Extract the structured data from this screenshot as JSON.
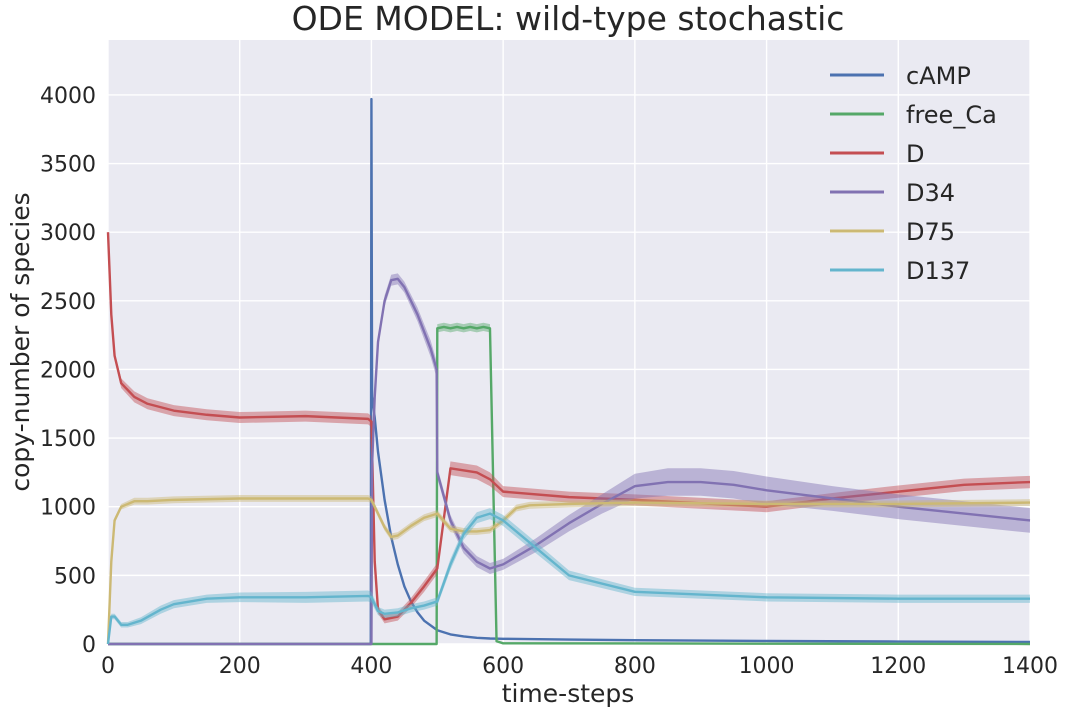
{
  "chart_data": {
    "type": "line",
    "title": "ODE MODEL: wild-type stochastic",
    "xlabel": "time-steps",
    "ylabel": "copy-number of species",
    "xlim": [
      0,
      1400
    ],
    "ylim": [
      0,
      4400
    ],
    "xticks": [
      0,
      200,
      400,
      600,
      800,
      1000,
      1200,
      1400
    ],
    "yticks": [
      0,
      500,
      1000,
      1500,
      2000,
      2500,
      3000,
      3500,
      4000
    ],
    "grid": true,
    "legend_position": "top-right",
    "series": [
      {
        "name": "cAMP",
        "color": "#4c72b0",
        "x": [
          0,
          399,
          400,
          401,
          405,
          410,
          420,
          430,
          440,
          450,
          460,
          470,
          480,
          500,
          520,
          540,
          560,
          580,
          600,
          700,
          800,
          1000,
          1200,
          1400
        ],
        "y": [
          0,
          0,
          3970,
          1800,
          1650,
          1400,
          1050,
          780,
          580,
          420,
          310,
          230,
          170,
          100,
          70,
          55,
          45,
          40,
          38,
          32,
          28,
          22,
          18,
          15
        ],
        "band": [
          0,
          0,
          0,
          0,
          0,
          0,
          0,
          0,
          0,
          0,
          0,
          0,
          0,
          0,
          0,
          0,
          0,
          0,
          0,
          0,
          0,
          0,
          0,
          0
        ]
      },
      {
        "name": "free_Ca",
        "color": "#55a868",
        "x": [
          0,
          499,
          500,
          510,
          520,
          530,
          540,
          550,
          560,
          570,
          580,
          590,
          600,
          1400
        ],
        "y": [
          0,
          0,
          2300,
          2310,
          2300,
          2310,
          2300,
          2310,
          2300,
          2310,
          2300,
          20,
          5,
          0
        ],
        "band": [
          0,
          0,
          30,
          30,
          30,
          30,
          30,
          30,
          30,
          30,
          30,
          0,
          0,
          0
        ]
      },
      {
        "name": "D",
        "color": "#c44e52",
        "x": [
          0,
          5,
          10,
          20,
          40,
          60,
          100,
          150,
          200,
          300,
          395,
          400,
          405,
          410,
          420,
          440,
          460,
          480,
          500,
          520,
          560,
          580,
          600,
          700,
          800,
          1000,
          1100,
          1200,
          1300,
          1400
        ],
        "y": [
          3000,
          2400,
          2100,
          1900,
          1800,
          1750,
          1700,
          1670,
          1650,
          1660,
          1640,
          1620,
          600,
          250,
          180,
          200,
          300,
          420,
          550,
          1280,
          1250,
          1200,
          1110,
          1070,
          1050,
          1000,
          1060,
          1110,
          1160,
          1180
        ],
        "band": [
          0,
          30,
          30,
          35,
          40,
          40,
          40,
          40,
          40,
          40,
          40,
          40,
          30,
          30,
          30,
          30,
          35,
          40,
          40,
          50,
          50,
          50,
          40,
          40,
          40,
          40,
          40,
          45,
          45,
          45
        ]
      },
      {
        "name": "D34",
        "color": "#8172b2",
        "x": [
          0,
          399,
          400,
          401,
          405,
          410,
          420,
          430,
          440,
          450,
          470,
          490,
          499,
          500,
          520,
          540,
          560,
          580,
          600,
          650,
          700,
          750,
          800,
          850,
          900,
          950,
          1000,
          1100,
          1200,
          1300,
          1400
        ],
        "y": [
          0,
          0,
          0,
          1300,
          1800,
          2200,
          2500,
          2650,
          2660,
          2600,
          2400,
          2150,
          2000,
          1250,
          900,
          700,
          600,
          550,
          580,
          720,
          880,
          1020,
          1150,
          1180,
          1180,
          1160,
          1120,
          1060,
          1000,
          950,
          900
        ],
        "band": [
          0,
          0,
          0,
          20,
          30,
          35,
          40,
          40,
          40,
          40,
          50,
          60,
          60,
          40,
          40,
          40,
          40,
          40,
          40,
          50,
          60,
          70,
          90,
          100,
          100,
          100,
          100,
          90,
          90,
          90,
          90
        ]
      },
      {
        "name": "D75",
        "color": "#ccb974",
        "x": [
          0,
          5,
          10,
          20,
          40,
          60,
          100,
          200,
          300,
          395,
          400,
          410,
          420,
          430,
          440,
          460,
          480,
          500,
          520,
          540,
          560,
          580,
          600,
          620,
          640,
          700,
          800,
          1000,
          1200,
          1400
        ],
        "y": [
          0,
          600,
          900,
          1000,
          1040,
          1040,
          1050,
          1060,
          1060,
          1060,
          1050,
          950,
          850,
          780,
          790,
          860,
          920,
          950,
          840,
          820,
          820,
          830,
          900,
          990,
          1010,
          1020,
          1030,
          1020,
          1020,
          1030
        ],
        "band": [
          0,
          20,
          20,
          20,
          25,
          25,
          25,
          25,
          25,
          25,
          25,
          25,
          25,
          25,
          25,
          25,
          25,
          25,
          25,
          25,
          25,
          25,
          25,
          25,
          25,
          25,
          25,
          25,
          25,
          25
        ]
      },
      {
        "name": "D137",
        "color": "#64b5cd",
        "x": [
          0,
          5,
          10,
          20,
          30,
          50,
          80,
          100,
          150,
          200,
          300,
          395,
          400,
          410,
          420,
          440,
          460,
          480,
          500,
          520,
          540,
          560,
          580,
          600,
          650,
          700,
          800,
          1000,
          1200,
          1400
        ],
        "y": [
          0,
          200,
          200,
          140,
          140,
          170,
          250,
          290,
          330,
          340,
          340,
          350,
          340,
          240,
          220,
          230,
          260,
          280,
          310,
          580,
          800,
          920,
          950,
          900,
          700,
          500,
          380,
          340,
          330,
          330
        ],
        "band": [
          0,
          20,
          20,
          20,
          20,
          25,
          30,
          30,
          30,
          35,
          40,
          40,
          40,
          30,
          30,
          30,
          30,
          30,
          30,
          40,
          40,
          40,
          40,
          40,
          40,
          35,
          30,
          30,
          30,
          30
        ]
      }
    ]
  }
}
